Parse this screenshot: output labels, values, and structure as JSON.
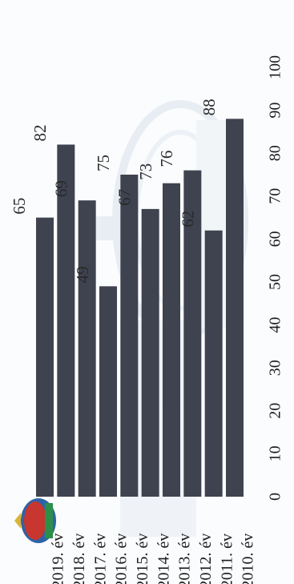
{
  "chart_data": {
    "type": "bar",
    "orientation": "rotated-90-clockwise",
    "categories": [
      "2010.",
      "2011.",
      "2012.",
      "2013.",
      "2014.",
      "2015.",
      "2016.",
      "2017.",
      "2018.",
      "2019."
    ],
    "category_suffix": "év",
    "values": [
      88,
      62,
      76,
      73,
      67,
      75,
      49,
      69,
      82,
      65
    ],
    "value_labels": [
      "88",
      "62",
      "76",
      "73",
      "67",
      "75",
      "49",
      "69",
      "82",
      "65"
    ],
    "value_axis_ticks": [
      "0",
      "10",
      "20",
      "30",
      "40",
      "50",
      "60",
      "70",
      "80",
      "90",
      "100"
    ],
    "ylim": [
      0,
      100
    ],
    "grid": false,
    "legend": "none",
    "colors": {
      "bar": "#3f4350",
      "background": "#fbfcfd",
      "watermark": "#b7c8dc"
    },
    "watermark_icon": "stadium-watermark-icon",
    "logo_icon": "club-crest-logo-icon"
  }
}
